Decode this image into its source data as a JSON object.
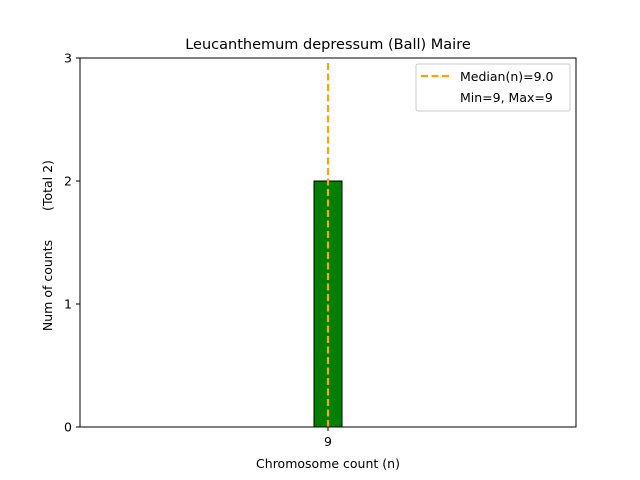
{
  "chart_data": {
    "type": "bar",
    "title": "Leucanthemum depressum (Ball) Maire",
    "xlabel": "Chromosome count (n)",
    "ylabel": "Num of counts",
    "ylabel_total": "(Total 2)",
    "xlim": [
      6,
      12
    ],
    "ylim": [
      0,
      3
    ],
    "yticks": [
      0,
      1,
      2,
      3
    ],
    "xticks": [
      9
    ],
    "bars": [
      {
        "x": 9,
        "value": 2,
        "color": "#008000",
        "edge": "#000000"
      }
    ],
    "median": {
      "value": 9,
      "color": "#ffa500",
      "label": "Median(n)=9.0"
    },
    "minmax_label": "Min=9, Max=9",
    "legend_position": "upper right",
    "grid": false
  }
}
